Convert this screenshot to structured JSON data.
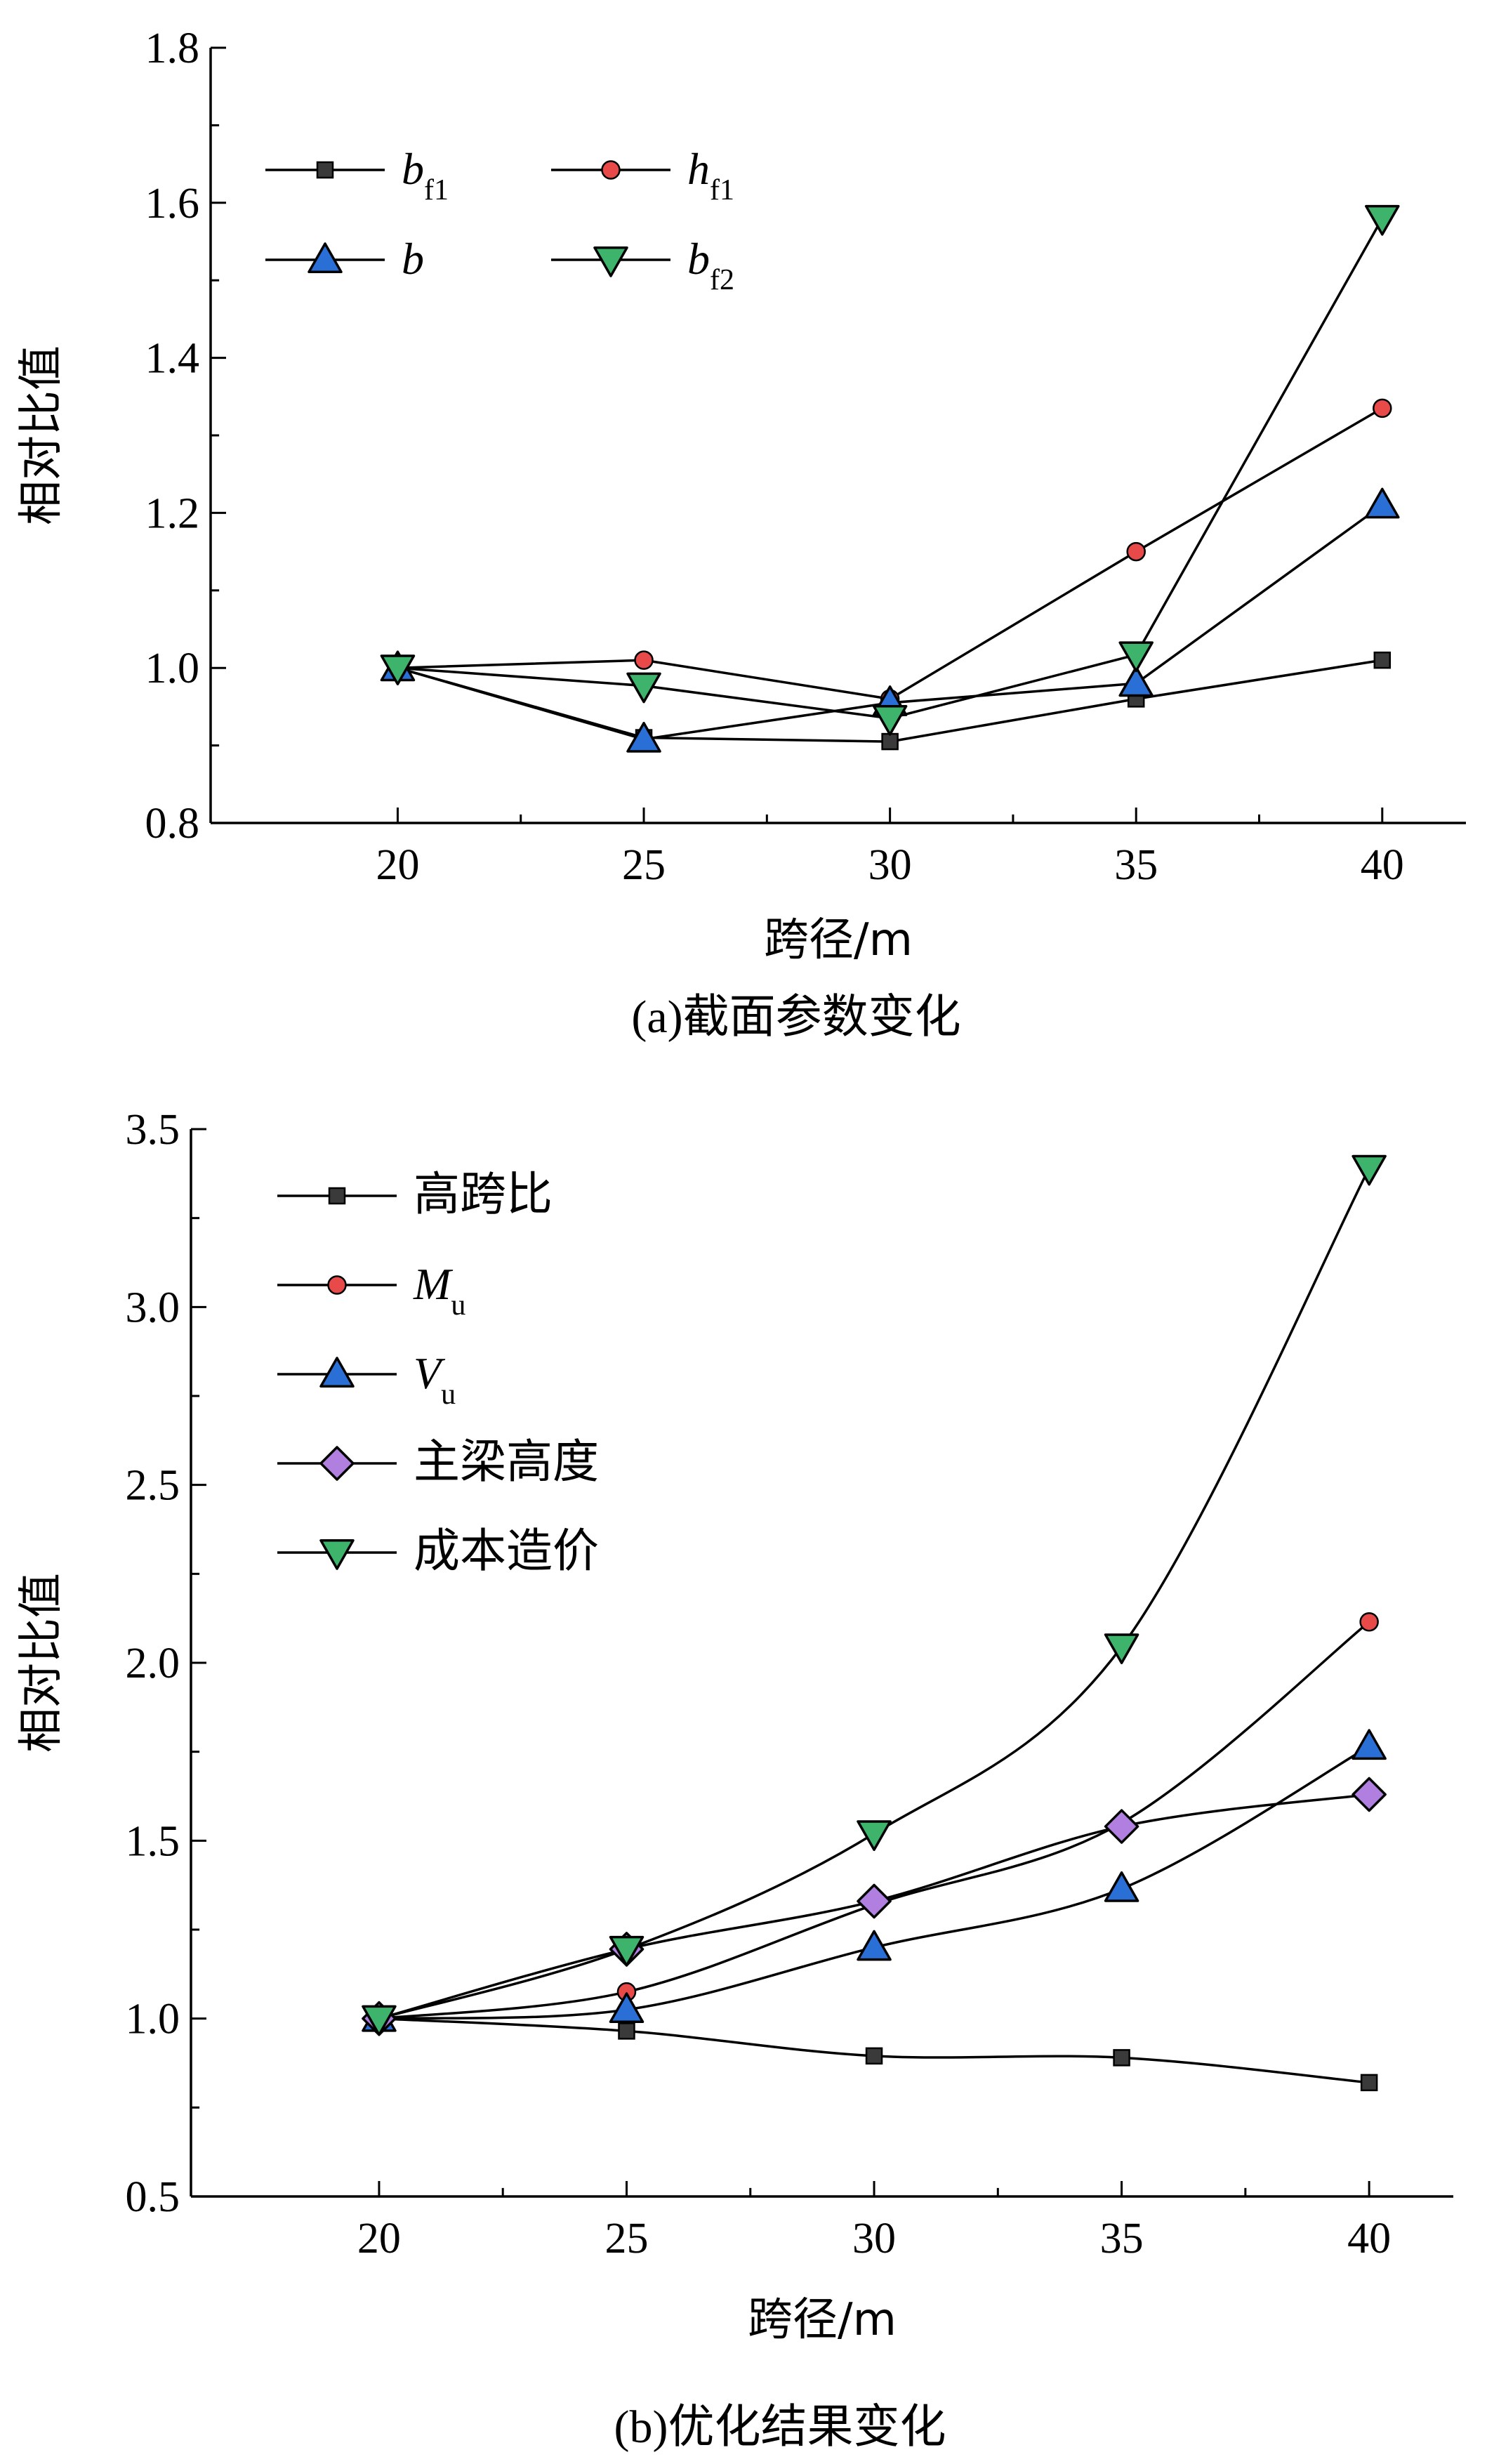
{
  "colors": {
    "axis": "#000000",
    "line": "#000000",
    "square": "#3a3a3a",
    "circle": "#e84a4a",
    "triangle_up": "#2a6fd6",
    "diamond": "#b07fe0",
    "triangle_down": "#3db36b"
  },
  "chart_data": [
    {
      "type": "line",
      "caption": "(a)截面参数变化",
      "xlabel": "跨径/m",
      "ylabel": "相对比值",
      "x": [
        20,
        25,
        30,
        35,
        40
      ],
      "xlim": [
        16.2,
        41.7
      ],
      "ylim": [
        0.8,
        1.8
      ],
      "xticks": [
        "20",
        "25",
        "30",
        "35",
        "40"
      ],
      "yticks": [
        "0.8",
        "1.0",
        "1.2",
        "1.4",
        "1.6",
        "1.8"
      ],
      "smooth": false,
      "legend": {
        "position": "top-left",
        "columns": 2
      },
      "series": [
        {
          "name": "b",
          "sub": "f1",
          "marker": "square",
          "values": [
            1.0,
            0.91,
            0.905,
            0.96,
            1.01
          ]
        },
        {
          "name": "h",
          "sub": "f1",
          "marker": "circle",
          "values": [
            1.0,
            1.01,
            0.96,
            1.15,
            1.335
          ]
        },
        {
          "name": "b",
          "sub": "",
          "marker": "triangle_up",
          "values": [
            1.0,
            0.908,
            0.955,
            0.98,
            1.21
          ]
        },
        {
          "name": "b",
          "sub": "f2",
          "marker": "triangle_down",
          "values": [
            1.0,
            0.977,
            0.935,
            1.017,
            1.58
          ]
        }
      ]
    },
    {
      "type": "line",
      "caption": "(b)优化结果变化",
      "xlabel": "跨径/m",
      "ylabel": "相对比值",
      "x": [
        20,
        25,
        30,
        35,
        40
      ],
      "xlim": [
        16.2,
        41.7
      ],
      "ylim": [
        0.5,
        3.5
      ],
      "xticks": [
        "20",
        "25",
        "30",
        "35",
        "40"
      ],
      "yticks": [
        "0.5",
        "1.0",
        "1.5",
        "2.0",
        "2.5",
        "3.0",
        "3.5"
      ],
      "smooth": true,
      "legend": {
        "position": "top-left",
        "columns": 1
      },
      "series": [
        {
          "name": "高跨比",
          "sub": "",
          "marker": "square",
          "values": [
            1.0,
            0.965,
            0.895,
            0.89,
            0.82
          ]
        },
        {
          "name": "M",
          "sub": "u",
          "marker": "circle",
          "values": [
            1.0,
            1.075,
            1.32,
            1.55,
            2.115
          ]
        },
        {
          "name": "V",
          "sub": "u",
          "marker": "triangle_up",
          "values": [
            1.0,
            1.025,
            1.2,
            1.365,
            1.765
          ]
        },
        {
          "name": "主梁高度",
          "sub": "",
          "marker": "diamond",
          "values": [
            1.0,
            1.195,
            1.33,
            1.54,
            1.63
          ]
        },
        {
          "name": "成本造价",
          "sub": "",
          "marker": "triangle_down",
          "values": [
            1.0,
            1.195,
            1.52,
            2.045,
            3.39
          ]
        }
      ]
    }
  ]
}
